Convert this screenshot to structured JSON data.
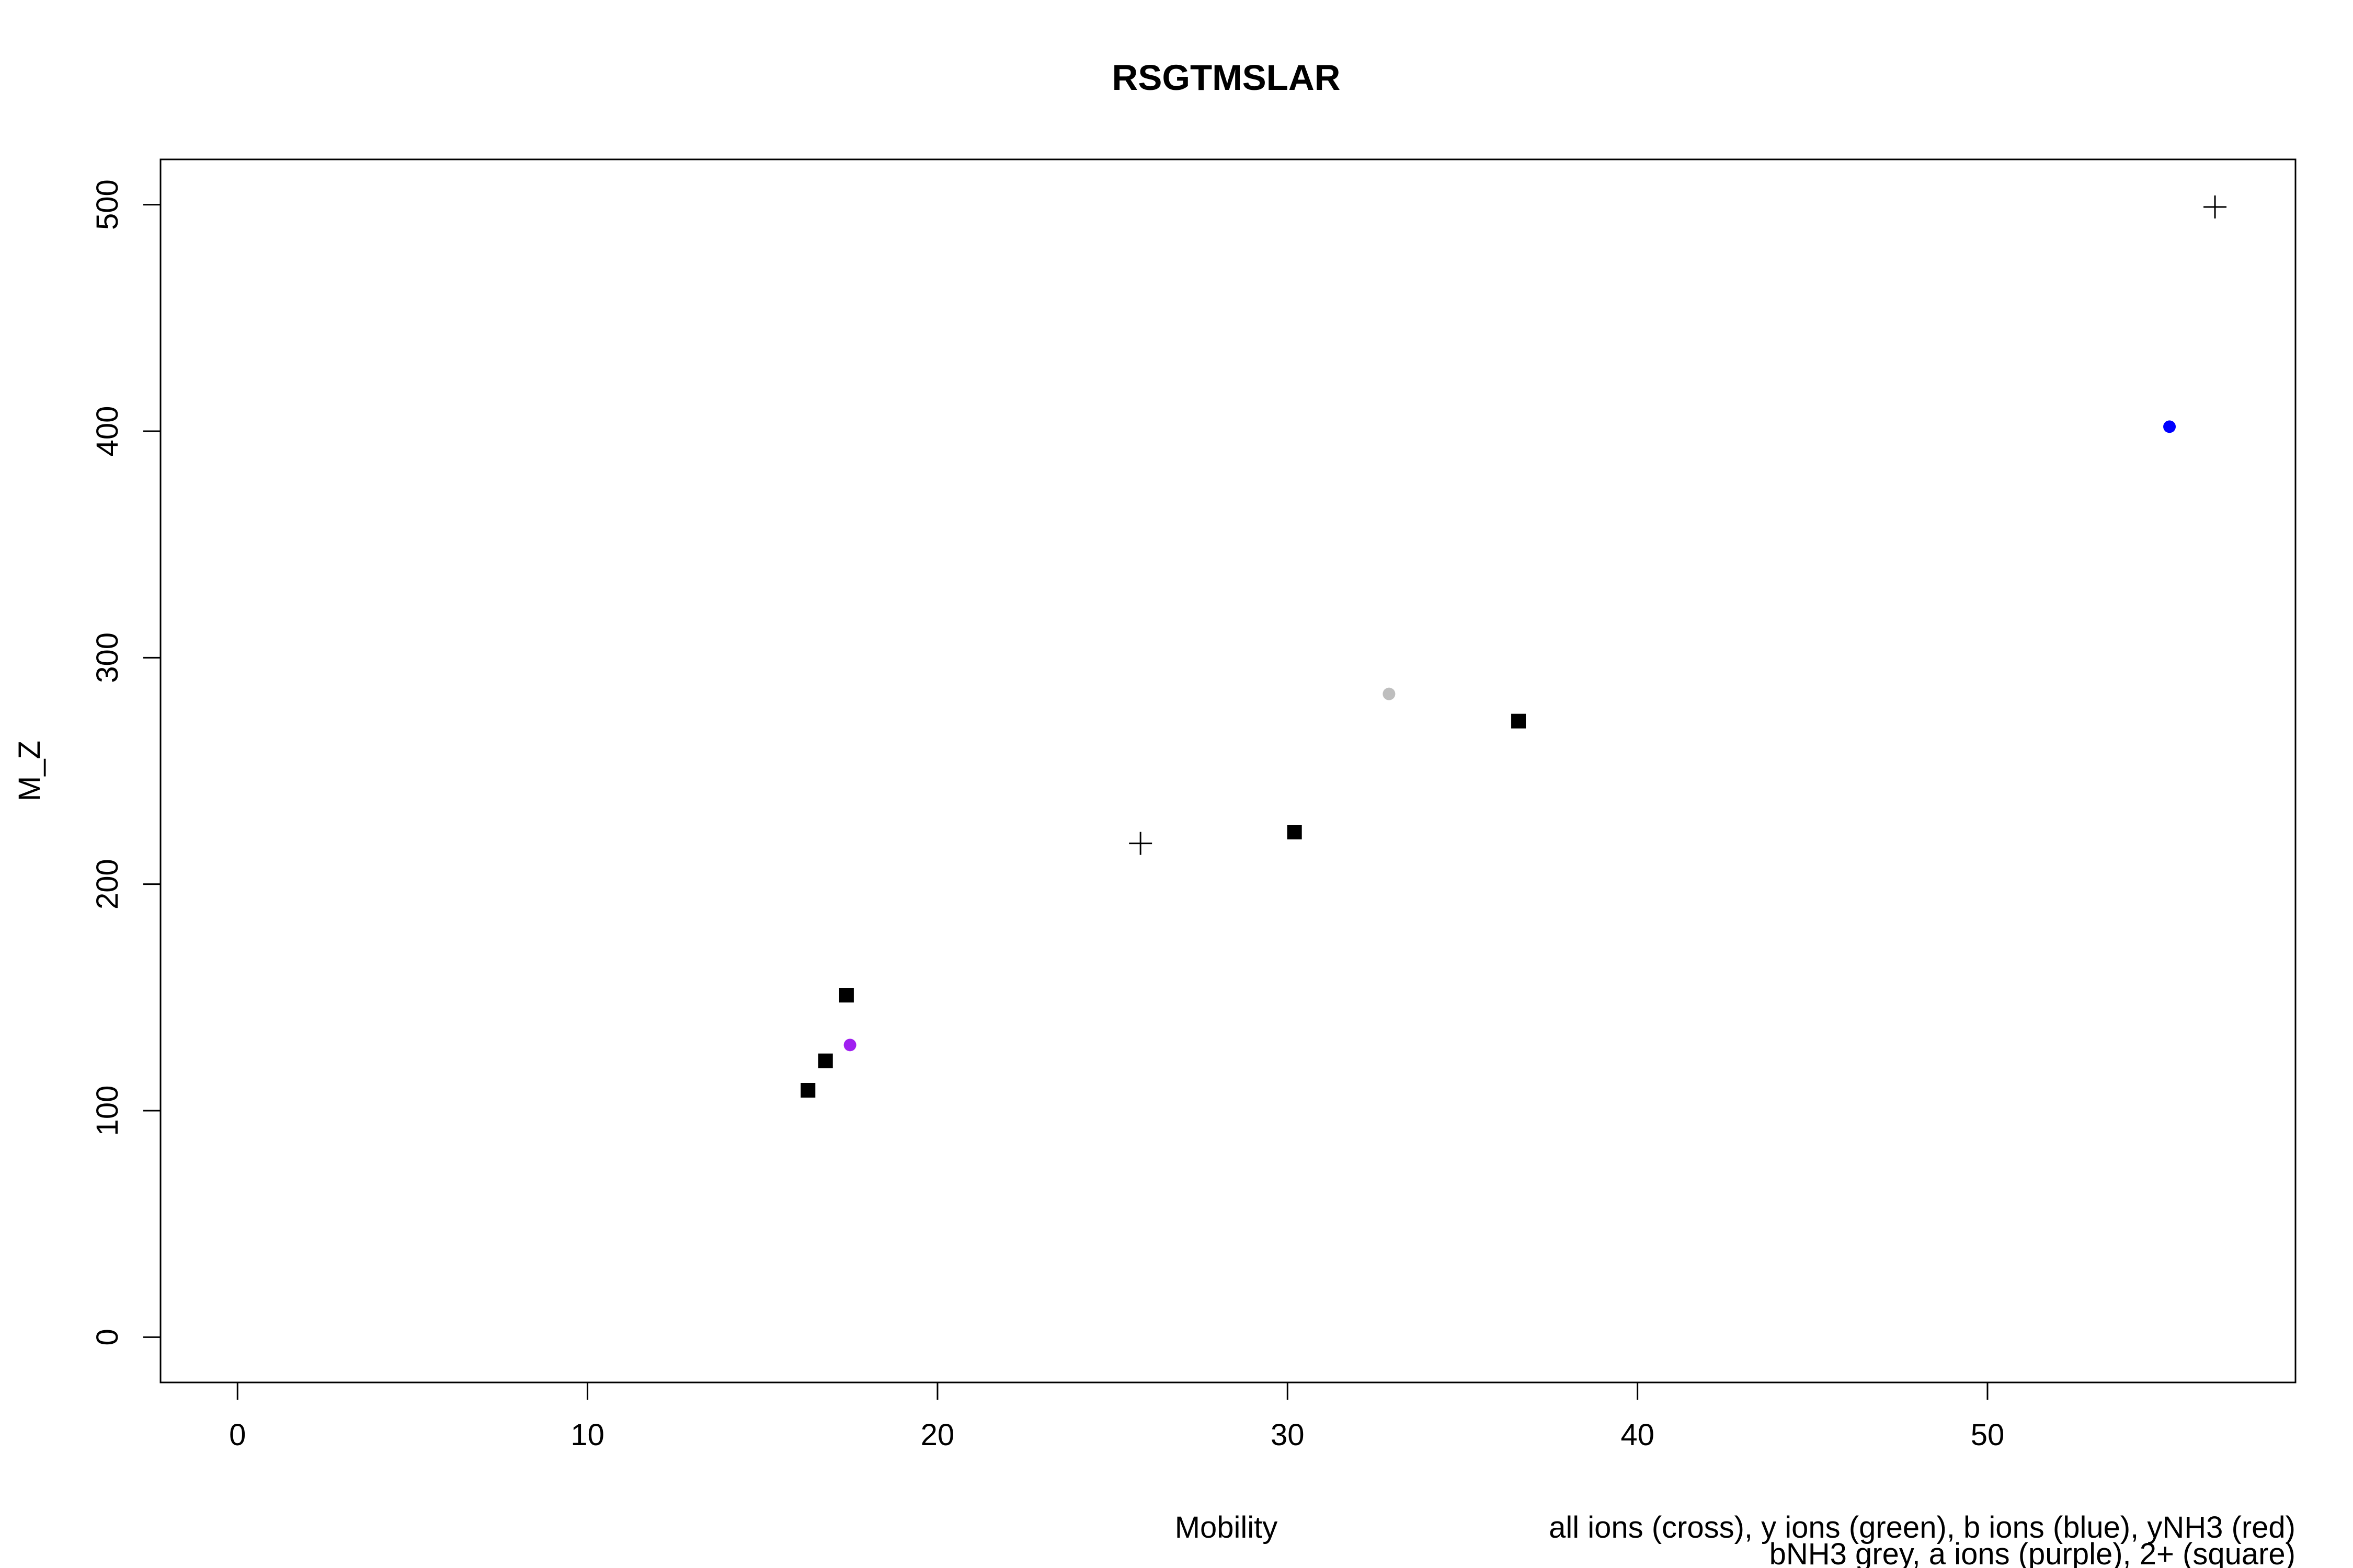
{
  "chart_data": {
    "type": "scatter",
    "title": "RSGTMSLAR",
    "xlabel": "Mobility",
    "ylabel": "M_Z",
    "xlim": [
      -2.2,
      58.8
    ],
    "ylim": [
      -20,
      520
    ],
    "xticks": [
      0,
      10,
      20,
      30,
      40,
      50
    ],
    "yticks": [
      0,
      100,
      200,
      300,
      400,
      500
    ],
    "grid": false,
    "legend_text": [
      "all ions (cross), y ions (green), b ions (blue), yNH3 (red)",
      "bNH3 grey, a ions (purple), 2+ (square)"
    ],
    "series": [
      {
        "marker": "cross",
        "color": "#000000",
        "points": [
          [
            25.8,
            218
          ],
          [
            56.5,
            499
          ]
        ]
      },
      {
        "marker": "circle",
        "color": "#0000ff",
        "points": [
          [
            55.2,
            402
          ]
        ]
      },
      {
        "marker": "circle",
        "color": "#bebebe",
        "points": [
          [
            32.9,
            284
          ]
        ]
      },
      {
        "marker": "circle",
        "color": "#a020f0",
        "points": [
          [
            17.5,
            129
          ]
        ]
      },
      {
        "marker": "square",
        "color": "#000000",
        "points": [
          [
            16.3,
            109
          ],
          [
            16.8,
            122
          ],
          [
            17.4,
            151
          ],
          [
            30.2,
            223
          ],
          [
            36.6,
            272
          ]
        ]
      }
    ]
  }
}
